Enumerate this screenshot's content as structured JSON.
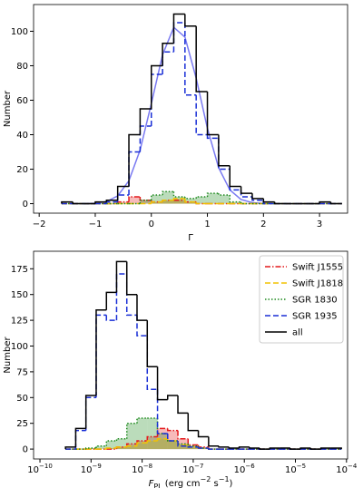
{
  "chart_data": [
    {
      "type": "histogram",
      "xlabel": "Γ",
      "ylabel": "Number",
      "xlim": [
        -2.1,
        3.5
      ],
      "ylim": [
        -5.5,
        115.5
      ],
      "xticks": [
        {
          "value": -2,
          "label": "−2"
        },
        {
          "value": -1,
          "label": "−1"
        },
        0,
        1,
        2,
        3
      ],
      "yticks": [
        0,
        20,
        40,
        60,
        80,
        100
      ],
      "bins": [
        -1.6,
        -1.4,
        -1.2,
        -1.0,
        -0.8,
        -0.6,
        -0.4,
        -0.2,
        0,
        0.2,
        0.4,
        0.6,
        0.8,
        1.0,
        1.2,
        1.4,
        1.6,
        1.8,
        2.0,
        2.2,
        2.4,
        2.6,
        2.8,
        3.0,
        3.2,
        3.4
      ],
      "series": [
        {
          "color": "#e41a1c",
          "linestyle": "dashdot",
          "filled": true,
          "values": [
            0,
            0,
            0,
            0,
            0,
            1,
            4,
            2,
            1,
            2,
            2,
            1,
            0,
            0,
            0,
            0,
            0,
            0,
            0,
            0,
            0,
            0,
            0,
            0,
            0
          ]
        },
        {
          "color": "#f2c200",
          "linestyle": "dashed",
          "filled": true,
          "values": [
            0,
            0,
            0,
            0,
            0,
            0,
            0,
            0,
            1,
            2,
            3,
            1,
            0,
            0,
            0,
            0,
            0,
            0,
            0,
            0,
            0,
            0,
            0,
            0,
            0
          ]
        },
        {
          "color": "#1f8a1f",
          "linestyle": "dotted",
          "filled": true,
          "values": [
            0,
            0,
            0,
            0,
            0,
            0,
            0,
            2,
            5,
            7,
            4,
            3,
            4,
            6,
            5,
            1,
            0,
            0,
            0,
            0,
            0,
            0,
            0,
            0,
            0
          ]
        },
        {
          "color": "#1a2fd6",
          "linestyle": "dashed",
          "values": [
            0,
            0,
            0,
            0,
            1,
            5,
            30,
            45,
            75,
            88,
            105,
            63,
            40,
            38,
            20,
            8,
            4,
            2,
            0,
            0,
            0,
            0,
            0,
            0,
            0
          ]
        },
        {
          "color": "#000000",
          "linestyle": "solid",
          "values": [
            1,
            0,
            0,
            1,
            2,
            10,
            40,
            55,
            80,
            93,
            110,
            103,
            65,
            40,
            22,
            10,
            6,
            3,
            1,
            0,
            0,
            0,
            0,
            1,
            0
          ]
        },
        {
          "type": "line",
          "color": "#7a7af2",
          "linestyle": "solid",
          "x": [
            -1.2,
            -1.0,
            -0.8,
            -0.6,
            -0.4,
            -0.2,
            0,
            0.2,
            0.4,
            0.6,
            0.8,
            1.0,
            1.2,
            1.4,
            1.6,
            1.8,
            2.0
          ],
          "values": [
            0.05,
            0.3,
            1.2,
            4.5,
            13.3,
            31.1,
            58,
            86.3,
            102.3,
            96.6,
            72.8,
            43.7,
            20.9,
            8,
            2.4,
            0.6,
            0.1
          ]
        }
      ]
    },
    {
      "type": "histogram",
      "ylabel": "Number",
      "xlabel": [
        {
          "text": "F",
          "italic": true
        },
        {
          "text": "PL",
          "shift": "sub"
        },
        {
          "text": " (erg cm"
        },
        {
          "text": "−2",
          "shift": "sup"
        },
        {
          "text": " s"
        },
        {
          "text": "−1",
          "shift": "sup"
        },
        {
          "text": ")"
        }
      ],
      "xscale": "log",
      "xlim": [
        7.5e-11,
        0.000105
      ],
      "ylim": [
        -9.6,
        192
      ],
      "xticks": [
        {
          "value": 1e-10,
          "label": "10",
          "exponent": "−10"
        },
        {
          "value": 1e-09,
          "label": "10",
          "exponent": "−9"
        },
        {
          "value": 1e-08,
          "label": "10",
          "exponent": "−8"
        },
        {
          "value": 1e-07,
          "label": "10",
          "exponent": "−7"
        },
        {
          "value": 1e-06,
          "label": "10",
          "exponent": "−6"
        },
        {
          "value": 1e-05,
          "label": "10",
          "exponent": "−5"
        },
        {
          "value": 0.0001,
          "label": "10",
          "exponent": "−4"
        }
      ],
      "yticks": [
        0,
        25,
        50,
        75,
        100,
        125,
        150,
        175
      ],
      "legend": "upper right",
      "bins": [
        3.16e-10,
        5.01e-10,
        7.94e-10,
        1.26e-09,
        2e-09,
        3.16e-09,
        5.01e-09,
        7.94e-09,
        1.26e-08,
        2e-08,
        3.16e-08,
        5.01e-08,
        7.94e-08,
        1.26e-07,
        2e-07,
        3.16e-07,
        5.01e-07,
        7.94e-07,
        1.26e-06,
        2e-06,
        3.16e-06,
        5.01e-06,
        7.94e-06,
        1.26e-05,
        2e-05,
        3.16e-05,
        5.01e-05,
        7.94e-05
      ],
      "series": [
        {
          "name": "Swift J1555",
          "color": "#e41a1c",
          "linestyle": "dashdot",
          "filled": true,
          "values": [
            0,
            0,
            0,
            0,
            0,
            2,
            5,
            8,
            12,
            20,
            18,
            10,
            4,
            2,
            0,
            0,
            0,
            0,
            0,
            0,
            0,
            0,
            0,
            0,
            0,
            0,
            0
          ]
        },
        {
          "name": "Swift J1818",
          "color": "#f2c200",
          "linestyle": "dashed",
          "filled": true,
          "values": [
            0,
            0,
            0,
            0,
            1,
            2,
            3,
            6,
            8,
            10,
            8,
            4,
            2,
            1,
            0,
            0,
            0,
            0,
            0,
            0,
            0,
            0,
            0,
            0,
            0,
            0,
            0
          ]
        },
        {
          "name": "SGR 1830",
          "color": "#1f8a1f",
          "linestyle": "dotted",
          "filled": true,
          "values": [
            0,
            0,
            1,
            3,
            8,
            10,
            25,
            30,
            30,
            15,
            8,
            5,
            3,
            1,
            0,
            0,
            0,
            0,
            0,
            0,
            0,
            0,
            0,
            0,
            0,
            0,
            0
          ]
        },
        {
          "name": "SGR 1935",
          "color": "#1a2fd6",
          "linestyle": "dashed",
          "values": [
            0,
            18,
            50,
            130,
            125,
            170,
            130,
            110,
            58,
            15,
            8,
            3,
            2,
            1,
            0,
            0,
            0,
            0,
            0,
            0,
            0,
            0,
            0,
            0,
            0,
            0,
            0
          ]
        },
        {
          "name": "all",
          "color": "#000000",
          "linestyle": "solid",
          "values": [
            2,
            20,
            52,
            135,
            152,
            182,
            150,
            125,
            80,
            48,
            52,
            35,
            18,
            12,
            3,
            2,
            1,
            2,
            1,
            0,
            1,
            1,
            0,
            1,
            0,
            1,
            1
          ]
        }
      ]
    }
  ]
}
